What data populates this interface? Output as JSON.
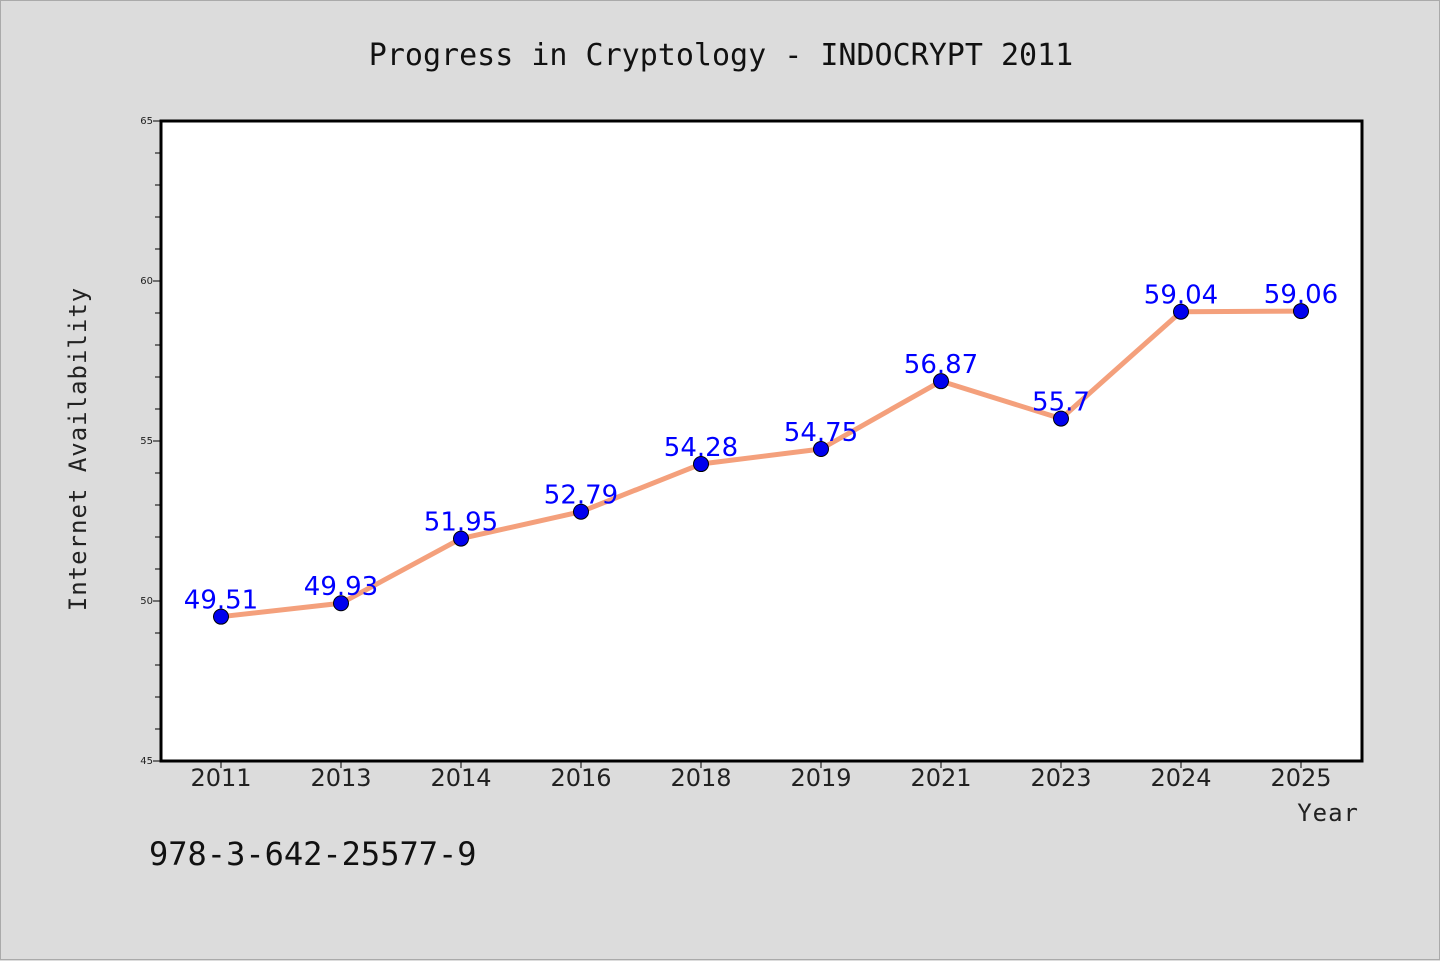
{
  "footer": {
    "isbn": "978-3-642-25577-9"
  },
  "colors": {
    "line": "#f4a07c",
    "marker": "#0000ee",
    "label": "#0000ff",
    "background": "#dcdcdc",
    "plot_background": "#ffffff"
  },
  "chart_data": {
    "type": "line",
    "title": "Progress in Cryptology - INDOCRYPT 2011",
    "xlabel": "Year",
    "ylabel": "Internet Availability",
    "categories": [
      "2011",
      "2013",
      "2014",
      "2016",
      "2018",
      "2019",
      "2021",
      "2023",
      "2024",
      "2025"
    ],
    "values": [
      49.51,
      49.93,
      51.95,
      52.79,
      54.28,
      54.75,
      56.87,
      55.7,
      59.04,
      59.06
    ],
    "data_labels": [
      "49.51",
      "49.93",
      "51.95",
      "52.79",
      "54.28",
      "54.75",
      "56.87",
      "55.7",
      "59.04",
      "59.06"
    ],
    "ylim": [
      45,
      65
    ],
    "yticks": [
      "45",
      "50",
      "55",
      "60",
      "65"
    ],
    "grid": false,
    "legend": false
  }
}
